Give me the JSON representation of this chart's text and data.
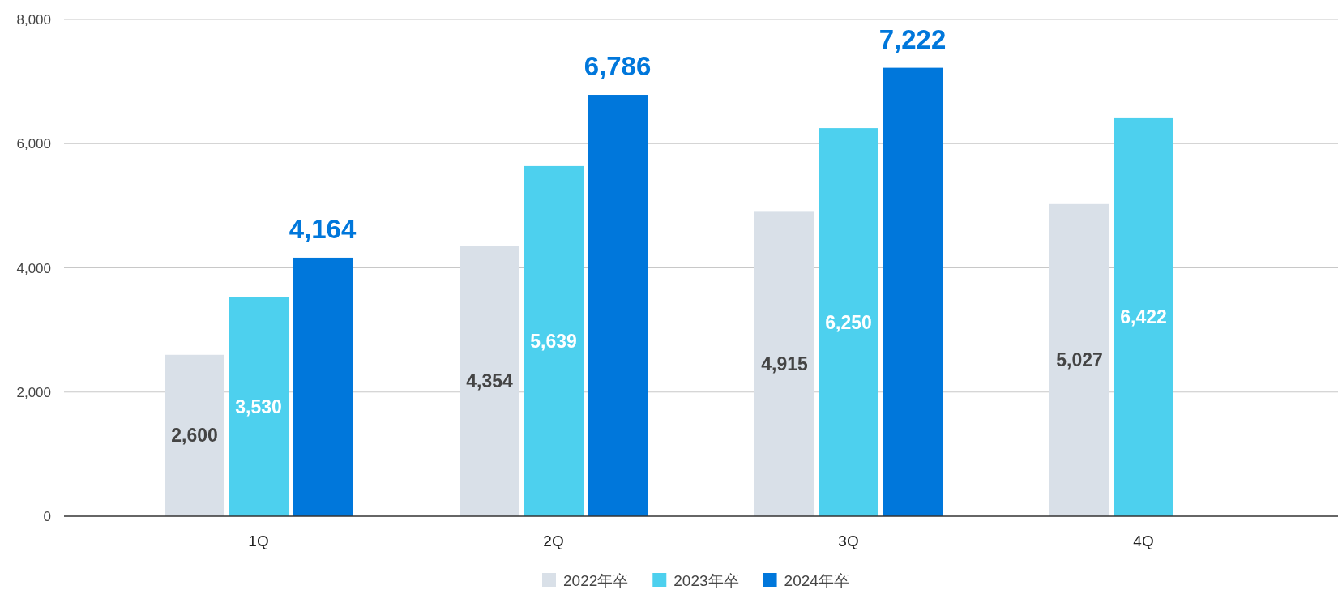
{
  "chart_data": {
    "type": "bar",
    "categories": [
      "1Q",
      "2Q",
      "3Q",
      "4Q"
    ],
    "series": [
      {
        "name": "2022年卒",
        "color": "#d9e0e8",
        "values": [
          2600,
          4354,
          4915,
          5027
        ],
        "value_labels": [
          "2,600",
          "4,354",
          "4,915",
          "5,027"
        ]
      },
      {
        "name": "2023年卒",
        "color": "#4dd0ee",
        "values": [
          3530,
          5639,
          6250,
          6422
        ],
        "value_labels": [
          "3,530",
          "5,639",
          "6,250",
          "6,422"
        ]
      },
      {
        "name": "2024年卒",
        "color": "#0077db",
        "values": [
          4164,
          6786,
          7222,
          null
        ],
        "value_labels": [
          "4,164",
          "6,786",
          "7,222",
          null
        ]
      }
    ],
    "ylim": [
      0,
      8000
    ],
    "yticks": [
      0,
      {
        "value": 2000,
        "label": "2,000"
      },
      {
        "value": 4000,
        "label": "4,000"
      },
      {
        "value": 6000,
        "label": "6,000"
      },
      {
        "value": 8000,
        "label": "8,000"
      }
    ],
    "grid": "y",
    "legend": "bottom"
  }
}
